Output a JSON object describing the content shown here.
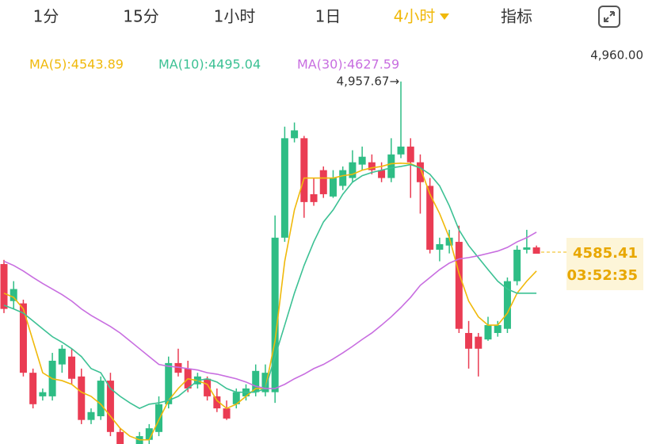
{
  "header": {
    "tabs": [
      "1分",
      "15分",
      "1小时",
      "1日",
      "4小时",
      "指标"
    ],
    "active": 4
  },
  "chart_data": {
    "type": "candlestick",
    "ylim": [
      4174,
      5031
    ],
    "yticks": [
      {
        "value": 4960,
        "label": "4,960.00"
      }
    ],
    "up_color": "#2ebd85",
    "down_color": "#ea3c53",
    "annotation": {
      "text": "4,957.67→",
      "candle": 41
    },
    "countdown": "03:52:35",
    "candles": [
      [
        4563,
        4572,
        4457,
        4466
      ],
      [
        4483,
        4526,
        4466,
        4509
      ],
      [
        4478,
        4486,
        4320,
        4328
      ],
      [
        4328,
        4337,
        4251,
        4260
      ],
      [
        4277,
        4294,
        4268,
        4286
      ],
      [
        4277,
        4371,
        4268,
        4354
      ],
      [
        4346,
        4388,
        4328,
        4380
      ],
      [
        4363,
        4380,
        4303,
        4315
      ],
      [
        4320,
        4337,
        4217,
        4226
      ],
      [
        4226,
        4251,
        4217,
        4243
      ],
      [
        4234,
        4320,
        4226,
        4311
      ],
      [
        4311,
        4328,
        4191,
        4200
      ],
      [
        4200,
        4208,
        4174,
        4174
      ],
      null,
      [
        4174,
        4200,
        4174,
        4191
      ],
      [
        4183,
        4217,
        4174,
        4208
      ],
      [
        4200,
        4277,
        4191,
        4260
      ],
      [
        4260,
        4363,
        4251,
        4349
      ],
      [
        4349,
        4380,
        4320,
        4328
      ],
      [
        4337,
        4354,
        4286,
        4294
      ],
      [
        4303,
        4328,
        4294,
        4320
      ],
      [
        4315,
        4320,
        4268,
        4277
      ],
      [
        4277,
        4294,
        4243,
        4251
      ],
      [
        4251,
        4268,
        4226,
        4229
      ],
      [
        4260,
        4294,
        4251,
        4286
      ],
      [
        4277,
        4303,
        4268,
        4294
      ],
      [
        4286,
        4346,
        4277,
        4332
      ],
      [
        4286,
        4346,
        4277,
        4328
      ],
      [
        4286,
        4668,
        4263,
        4620
      ],
      [
        4620,
        4860,
        4611,
        4835
      ],
      [
        4835,
        4869,
        4826,
        4852
      ],
      [
        4835,
        4840,
        4663,
        4697
      ],
      [
        4714,
        4749,
        4689,
        4697
      ],
      [
        4766,
        4774,
        4706,
        4714
      ],
      [
        4709,
        4766,
        4706,
        4749
      ],
      [
        4732,
        4774,
        4723,
        4766
      ],
      [
        4749,
        4809,
        4740,
        4783
      ],
      [
        4778,
        4817,
        4766,
        4795
      ],
      [
        4783,
        4800,
        4757,
        4766
      ],
      [
        4766,
        4783,
        4740,
        4749
      ],
      [
        4749,
        4835,
        4740,
        4800
      ],
      [
        4800,
        4957.67,
        4792,
        4817
      ],
      [
        4817,
        4835,
        4706,
        4783
      ],
      [
        4783,
        4800,
        4672,
        4740
      ],
      [
        4732,
        4749,
        4586,
        4594
      ],
      [
        4594,
        4620,
        4569,
        4606
      ],
      [
        4603,
        4637,
        4586,
        4620
      ],
      [
        4611,
        4646,
        4414,
        4423
      ],
      [
        4414,
        4440,
        4337,
        4380
      ],
      [
        4406,
        4414,
        4320,
        4380
      ],
      [
        4400,
        4449,
        4397,
        4431
      ],
      [
        4414,
        4440,
        4406,
        4431
      ],
      [
        4423,
        4534,
        4414,
        4526
      ],
      [
        4526,
        4603,
        4517,
        4594
      ],
      [
        4594,
        4637,
        4586,
        4599
      ],
      [
        4599,
        4603,
        4586,
        4585.41
      ]
    ],
    "series": [
      {
        "name": "MA(5):4543.89",
        "color": "#f0b90b",
        "values": [
          4500,
          4491,
          4466,
          4397,
          4328,
          4315,
          4311,
          4303,
          4286,
          4277,
          4260,
          4234,
          4208,
          4191,
          4183,
          4183,
          4226,
          4268,
          4294,
          4315,
          4311,
          4303,
          4268,
          4251,
          4260,
          4277,
          4294,
          4294,
          4397,
          4569,
          4680,
          4749,
          4749,
          4749,
          4749,
          4754,
          4757,
          4766,
          4771,
          4774,
          4780,
          4781,
          4780,
          4771,
          4714,
          4672,
          4620,
          4543,
          4483,
          4449,
          4431,
          4431,
          4457,
          4500,
          4526,
          4548
        ]
      },
      {
        "name": "MA(10):4495.04",
        "color": "#3cc194",
        "values": [
          4474,
          4466,
          4457,
          4440,
          4423,
          4406,
          4394,
          4380,
          4363,
          4337,
          4328,
          4294,
          4277,
          4263,
          4251,
          4260,
          4263,
          4268,
          4277,
          4294,
          4311,
          4315,
          4308,
          4294,
          4286,
          4286,
          4286,
          4294,
          4363,
          4431,
          4500,
          4560,
          4611,
          4654,
          4680,
          4714,
          4740,
          4754,
          4761,
          4766,
          4771,
          4774,
          4778,
          4771,
          4757,
          4732,
          4689,
          4637,
          4603,
          4577,
          4551,
          4526,
          4509,
          4500,
          4500,
          4500
        ]
      },
      {
        "name": "MA(30):4627.59",
        "color": "#c86ee0",
        "values": [
          4569,
          4560,
          4548,
          4534,
          4521,
          4509,
          4497,
          4483,
          4466,
          4452,
          4440,
          4428,
          4414,
          4397,
          4380,
          4363,
          4346,
          4342,
          4340,
          4337,
          4334,
          4328,
          4325,
          4320,
          4315,
          4308,
          4299,
          4294,
          4294,
          4303,
          4315,
          4325,
          4337,
          4346,
          4358,
          4371,
          4385,
          4400,
          4414,
          4431,
          4449,
          4469,
          4491,
          4517,
          4534,
          4551,
          4565,
          4574,
          4577,
          4581,
          4586,
          4591,
          4599,
          4611,
          4620,
          4632
        ]
      }
    ]
  }
}
